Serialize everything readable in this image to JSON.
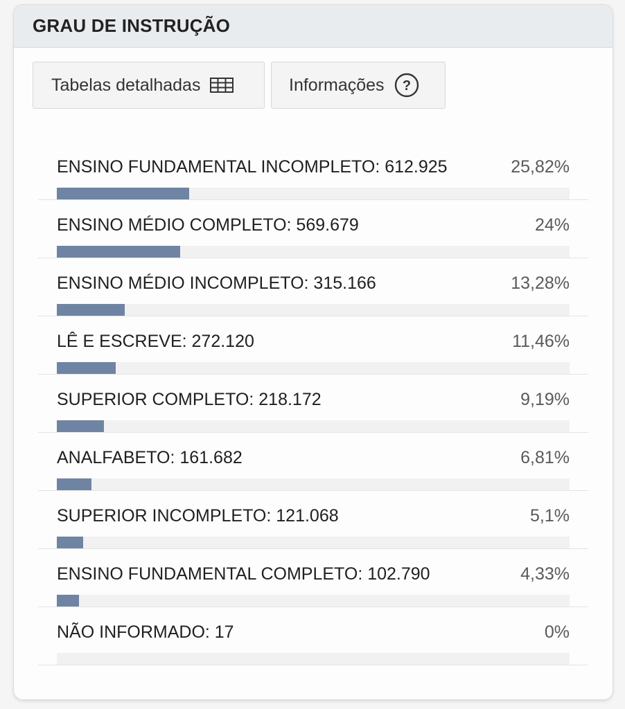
{
  "panel": {
    "title": "GRAU DE INSTRUÇÃO",
    "buttons": {
      "tables_label": "Tabelas detalhadas",
      "tables_icon": "table-icon",
      "info_label": "Informações",
      "info_icon": "question-circle-icon"
    }
  },
  "colors": {
    "bar": "#6f84a3",
    "track": "#f1f1f2",
    "header_bg": "#e9ecef"
  },
  "items": [
    {
      "label": "ENSINO FUNDAMENTAL INCOMPLETO: 612.925",
      "percent_text": "25,82%",
      "fill_fraction": 0.2582
    },
    {
      "label": "ENSINO MÉDIO COMPLETO: 569.679",
      "percent_text": "24%",
      "fill_fraction": 0.24
    },
    {
      "label": "ENSINO MÉDIO INCOMPLETO: 315.166",
      "percent_text": "13,28%",
      "fill_fraction": 0.1328
    },
    {
      "label": "LÊ E ESCREVE: 272.120",
      "percent_text": "11,46%",
      "fill_fraction": 0.1146
    },
    {
      "label": "SUPERIOR COMPLETO: 218.172",
      "percent_text": "9,19%",
      "fill_fraction": 0.0919
    },
    {
      "label": "ANALFABETO: 161.682",
      "percent_text": "6,81%",
      "fill_fraction": 0.0681
    },
    {
      "label": "SUPERIOR INCOMPLETO: 121.068",
      "percent_text": "5,1%",
      "fill_fraction": 0.051
    },
    {
      "label": "ENSINO FUNDAMENTAL COMPLETO: 102.790",
      "percent_text": "4,33%",
      "fill_fraction": 0.0433
    },
    {
      "label": "NÃO INFORMADO: 17",
      "percent_text": "0%",
      "fill_fraction": 0
    }
  ]
}
